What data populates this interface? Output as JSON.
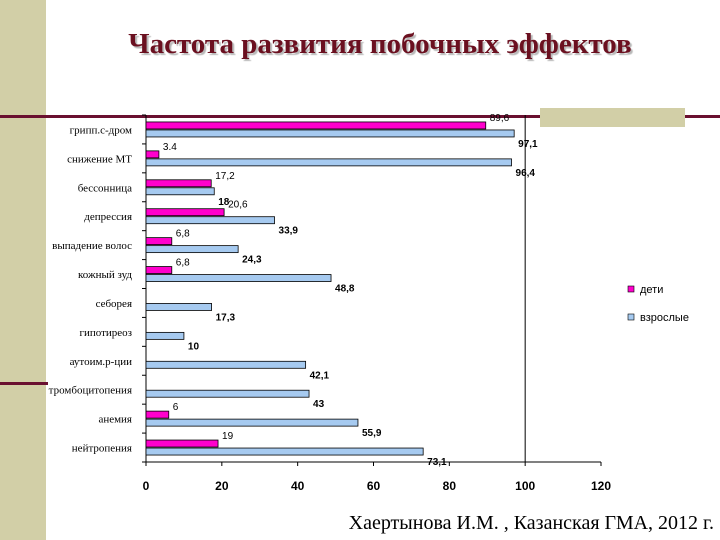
{
  "slide": {
    "title": "Частота развития побочных эффектов",
    "footer": "Хаертынова И.М. , Казанская ГМА, 2012 г.",
    "colors": {
      "accent_dark": "#6a1030",
      "beige": "#d2cfa7",
      "title": "#6b1020"
    }
  },
  "chart_data": {
    "type": "bar",
    "orientation": "horizontal",
    "categories": [
      "грипп.с-дром",
      "снижение МТ",
      "бессонница",
      "депрессия",
      "выпадение волос",
      "кожный зуд",
      "себорея",
      "гипотиреоз",
      "аутоим.р-ции",
      "тромбоцитопения",
      "анемия",
      "нейтропения"
    ],
    "series": [
      {
        "name": "дети",
        "color": "#ff00cc",
        "values": [
          89.6,
          3.4,
          17.2,
          20.6,
          6.8,
          6.8,
          null,
          null,
          null,
          null,
          6,
          19
        ],
        "labels": [
          "89,6",
          "3.4",
          "17,2",
          "20,6",
          "6,8",
          "6,8",
          "",
          "",
          "",
          "",
          "6",
          "19"
        ]
      },
      {
        "name": "взрослые",
        "color": "#a6caf0",
        "values": [
          97.1,
          96.4,
          18,
          33.9,
          24.3,
          48.8,
          17.3,
          10,
          42.1,
          43,
          55.9,
          73.1
        ],
        "labels": [
          "97,1",
          "96,4",
          "18",
          "33,9",
          "24,3",
          "48,8",
          "17,3",
          "10",
          "42,1",
          "43",
          "55,9",
          "73,1"
        ]
      }
    ],
    "xticks": [
      "0",
      "20",
      "40",
      "60",
      "80",
      "100",
      "120"
    ],
    "xlim": [
      0,
      120
    ],
    "grid": "vertical gridline at 100",
    "legend": "right"
  }
}
